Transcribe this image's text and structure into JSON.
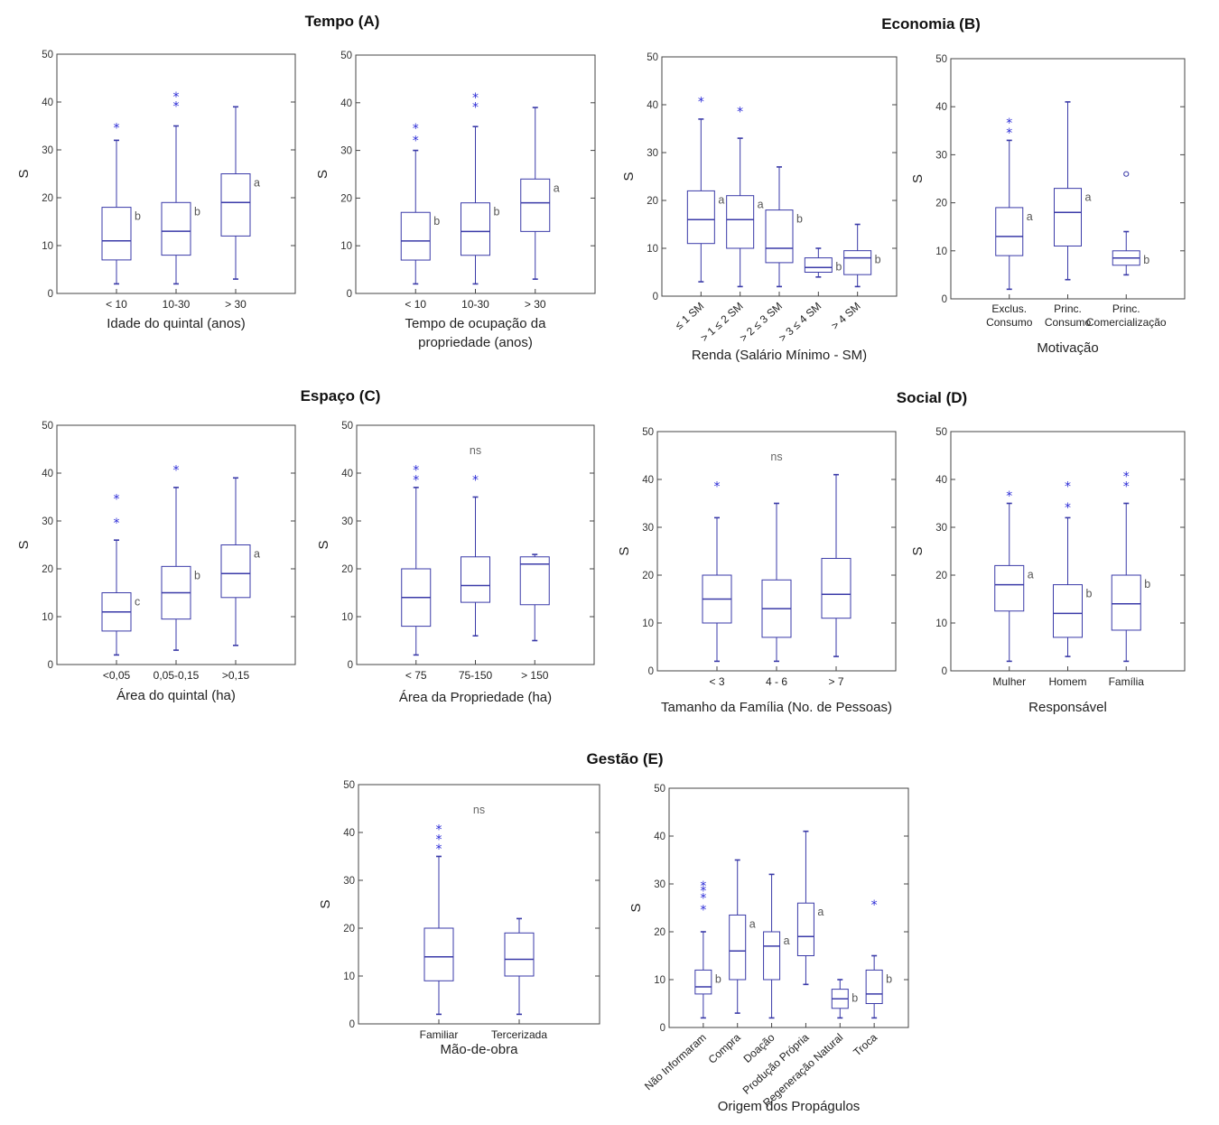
{
  "sections": [
    {
      "id": "A",
      "title": "Tempo (A)"
    },
    {
      "id": "B",
      "title": "Economia (B)"
    },
    {
      "id": "C",
      "title": "Espaço (C)"
    },
    {
      "id": "D",
      "title": "Social (D)"
    },
    {
      "id": "E",
      "title": "Gestão (E)"
    }
  ],
  "style": {
    "box_color": "#3a3aa8",
    "outlier_color": "#2b2bd6",
    "letter_color": "#555555"
  },
  "chart_data": [
    {
      "type": "box",
      "section": "Tempo (A)",
      "ylabel": "S",
      "xlabel": [
        "Idade do quintal (anos)"
      ],
      "ylim": [
        0,
        50
      ],
      "yticks": [
        0,
        10,
        20,
        30,
        40,
        50
      ],
      "categories": [
        "< 10",
        "10-30",
        "> 30"
      ],
      "boxes": [
        {
          "whisker_low": 2,
          "q1": 7,
          "median": 11,
          "q3": 18,
          "whisker_high": 32,
          "outliers": [
            35
          ],
          "letter": "b"
        },
        {
          "whisker_low": 2,
          "q1": 8,
          "median": 13,
          "q3": 19,
          "whisker_high": 35,
          "outliers": [
            39.5,
            41.5
          ],
          "letter": "b"
        },
        {
          "whisker_low": 3,
          "q1": 12,
          "median": 19,
          "q3": 25,
          "whisker_high": 39,
          "outliers": [],
          "letter": "a"
        }
      ]
    },
    {
      "type": "box",
      "section": "Tempo (A)",
      "ylabel": "S",
      "xlabel": [
        "Tempo de ocupação da",
        "propriedade (anos)"
      ],
      "ylim": [
        0,
        50
      ],
      "yticks": [
        0,
        10,
        20,
        30,
        40,
        50
      ],
      "categories": [
        "< 10",
        "10-30",
        "> 30"
      ],
      "boxes": [
        {
          "whisker_low": 2,
          "q1": 7,
          "median": 11,
          "q3": 17,
          "whisker_high": 30,
          "outliers": [
            32.5,
            35
          ],
          "letter": "b"
        },
        {
          "whisker_low": 2,
          "q1": 8,
          "median": 13,
          "q3": 19,
          "whisker_high": 35,
          "outliers": [
            39.5,
            41.5
          ],
          "letter": "b"
        },
        {
          "whisker_low": 3,
          "q1": 13,
          "median": 19,
          "q3": 24,
          "whisker_high": 39,
          "outliers": [],
          "letter": "a"
        }
      ]
    },
    {
      "type": "box",
      "section": "Economia (B)",
      "ylabel": "S",
      "xlabel": [
        "Renda (Salário Mínimo - SM)"
      ],
      "ylim": [
        0,
        50
      ],
      "yticks": [
        0,
        10,
        20,
        30,
        40,
        50
      ],
      "categories": [
        "≤ 1 SM",
        "> 1 ≤ 2 SM",
        "> 2 ≤ 3 SM",
        "> 3 ≤ 4 SM",
        "> 4 SM"
      ],
      "rotate_categories": true,
      "boxes": [
        {
          "whisker_low": 3,
          "q1": 11,
          "median": 16,
          "q3": 22,
          "whisker_high": 37,
          "outliers": [
            41
          ],
          "letter": "a"
        },
        {
          "whisker_low": 2,
          "q1": 10,
          "median": 16,
          "q3": 21,
          "whisker_high": 33,
          "outliers": [
            39
          ],
          "letter": "a"
        },
        {
          "whisker_low": 2,
          "q1": 7,
          "median": 10,
          "q3": 18,
          "whisker_high": 27,
          "outliers": [],
          "letter": "b"
        },
        {
          "whisker_low": 4,
          "q1": 5,
          "median": 6,
          "q3": 8,
          "whisker_high": 10,
          "outliers": [],
          "letter": "b"
        },
        {
          "whisker_low": 2,
          "q1": 4.5,
          "median": 8,
          "q3": 9.5,
          "whisker_high": 15,
          "outliers": [],
          "letter": "b"
        }
      ]
    },
    {
      "type": "box",
      "section": "Economia (B)",
      "ylabel": "S",
      "xlabel": [
        "Motivação"
      ],
      "ylim": [
        0,
        50
      ],
      "yticks": [
        0,
        10,
        20,
        30,
        40,
        50
      ],
      "categories": [
        "Exclus.|Consumo",
        "Princ.|Consumo",
        "Princ.|Comercialização"
      ],
      "boxes": [
        {
          "whisker_low": 2,
          "q1": 9,
          "median": 13,
          "q3": 19,
          "whisker_high": 33,
          "outliers": [
            35,
            37
          ],
          "letter": "a"
        },
        {
          "whisker_low": 4,
          "q1": 11,
          "median": 18,
          "q3": 23,
          "whisker_high": 41,
          "outliers": [],
          "letter": "a"
        },
        {
          "whisker_low": 5,
          "q1": 7,
          "median": 8.5,
          "q3": 10,
          "whisker_high": 14,
          "outliers": [
            26
          ],
          "outlier_symbol": "circle",
          "letter": "b"
        }
      ]
    },
    {
      "type": "box",
      "section": "Espaço (C)",
      "ylabel": "S",
      "xlabel": [
        "Área do quintal (ha)"
      ],
      "ylim": [
        0,
        50
      ],
      "yticks": [
        0,
        10,
        20,
        30,
        40,
        50
      ],
      "categories": [
        "<0,05",
        "0,05-0,15",
        ">0,15"
      ],
      "boxes": [
        {
          "whisker_low": 2,
          "q1": 7,
          "median": 11,
          "q3": 15,
          "whisker_high": 26,
          "outliers": [
            30,
            35
          ],
          "letter": "c"
        },
        {
          "whisker_low": 3,
          "q1": 9.5,
          "median": 15,
          "q3": 20.5,
          "whisker_high": 37,
          "outliers": [
            41
          ],
          "letter": "b"
        },
        {
          "whisker_low": 4,
          "q1": 14,
          "median": 19,
          "q3": 25,
          "whisker_high": 39,
          "outliers": [],
          "letter": "a"
        }
      ]
    },
    {
      "type": "box",
      "section": "Espaço (C)",
      "ylabel": "S",
      "xlabel": [
        "Área da Propriedade (ha)"
      ],
      "annotation": "ns",
      "ylim": [
        0,
        50
      ],
      "yticks": [
        0,
        10,
        20,
        30,
        40,
        50
      ],
      "categories": [
        "< 75",
        "75-150",
        "> 150"
      ],
      "boxes": [
        {
          "whisker_low": 2,
          "q1": 8,
          "median": 14,
          "q3": 20,
          "whisker_high": 37,
          "outliers": [
            39,
            41
          ],
          "letter": ""
        },
        {
          "whisker_low": 6,
          "q1": 13,
          "median": 16.5,
          "q3": 22.5,
          "whisker_high": 35,
          "outliers": [
            39
          ],
          "letter": ""
        },
        {
          "whisker_low": 5,
          "q1": 12.5,
          "median": 21,
          "q3": 22.5,
          "whisker_high": 23,
          "outliers": [],
          "letter": ""
        }
      ]
    },
    {
      "type": "box",
      "section": "Social (D)",
      "ylabel": "S",
      "xlabel": [
        "Tamanho da Família (No. de Pessoas)"
      ],
      "annotation": "ns",
      "ylim": [
        0,
        50
      ],
      "yticks": [
        0,
        10,
        20,
        30,
        40,
        50
      ],
      "categories": [
        "< 3",
        "4 - 6",
        "> 7"
      ],
      "boxes": [
        {
          "whisker_low": 2,
          "q1": 10,
          "median": 15,
          "q3": 20,
          "whisker_high": 32,
          "outliers": [
            39
          ],
          "letter": ""
        },
        {
          "whisker_low": 2,
          "q1": 7,
          "median": 13,
          "q3": 19,
          "whisker_high": 35,
          "outliers": [],
          "letter": ""
        },
        {
          "whisker_low": 3,
          "q1": 11,
          "median": 16,
          "q3": 23.5,
          "whisker_high": 41,
          "outliers": [],
          "letter": ""
        }
      ]
    },
    {
      "type": "box",
      "section": "Social (D)",
      "ylabel": "S",
      "xlabel": [
        "Responsável"
      ],
      "ylim": [
        0,
        50
      ],
      "yticks": [
        0,
        10,
        20,
        30,
        40,
        50
      ],
      "categories": [
        "Mulher",
        "Homem",
        "Família"
      ],
      "boxes": [
        {
          "whisker_low": 2,
          "q1": 12.5,
          "median": 18,
          "q3": 22,
          "whisker_high": 35,
          "outliers": [
            37
          ],
          "letter": "a"
        },
        {
          "whisker_low": 3,
          "q1": 7,
          "median": 12,
          "q3": 18,
          "whisker_high": 32,
          "outliers": [
            34.5,
            39
          ],
          "letter": "b"
        },
        {
          "whisker_low": 2,
          "q1": 8.5,
          "median": 14,
          "q3": 20,
          "whisker_high": 35,
          "outliers": [
            39,
            41
          ],
          "letter": "b"
        }
      ]
    },
    {
      "type": "box",
      "section": "Gestão (E)",
      "ylabel": "S",
      "xlabel": [
        "Mão-de-obra"
      ],
      "annotation": "ns",
      "ylim": [
        0,
        50
      ],
      "yticks": [
        0,
        10,
        20,
        30,
        40,
        50
      ],
      "categories": [
        "Familiar",
        "Tercerizada"
      ],
      "boxes": [
        {
          "whisker_low": 2,
          "q1": 9,
          "median": 14,
          "q3": 20,
          "whisker_high": 35,
          "outliers": [
            37,
            39,
            41
          ],
          "letter": ""
        },
        {
          "whisker_low": 2,
          "q1": 10,
          "median": 13.5,
          "q3": 19,
          "whisker_high": 22,
          "outliers": [],
          "letter": ""
        }
      ]
    },
    {
      "type": "box",
      "section": "Gestão (E)",
      "ylabel": "S",
      "xlabel": [
        "Origem dos Propágulos"
      ],
      "ylim": [
        0,
        50
      ],
      "yticks": [
        0,
        10,
        20,
        30,
        40,
        50
      ],
      "categories": [
        "Não Informaram",
        "Compra",
        "Doação",
        "Produção Própria",
        "Regeneração Natural",
        "Troca"
      ],
      "rotate_categories": true,
      "boxes": [
        {
          "whisker_low": 2,
          "q1": 7,
          "median": 8.5,
          "q3": 12,
          "whisker_high": 20,
          "outliers": [
            25,
            27.5,
            29,
            30
          ],
          "letter": "b"
        },
        {
          "whisker_low": 3,
          "q1": 10,
          "median": 16,
          "q3": 23.5,
          "whisker_high": 35,
          "outliers": [],
          "letter": "a"
        },
        {
          "whisker_low": 2,
          "q1": 10,
          "median": 17,
          "q3": 20,
          "whisker_high": 32,
          "outliers": [],
          "letter": "a"
        },
        {
          "whisker_low": 9,
          "q1": 15,
          "median": 19,
          "q3": 26,
          "whisker_high": 41,
          "outliers": [],
          "letter": "a"
        },
        {
          "whisker_low": 2,
          "q1": 4,
          "median": 6,
          "q3": 8,
          "whisker_high": 10,
          "outliers": [],
          "letter": "b"
        },
        {
          "whisker_low": 2,
          "q1": 5,
          "median": 7,
          "q3": 12,
          "whisker_high": 15,
          "outliers": [
            26
          ],
          "letter": "b"
        }
      ]
    }
  ]
}
